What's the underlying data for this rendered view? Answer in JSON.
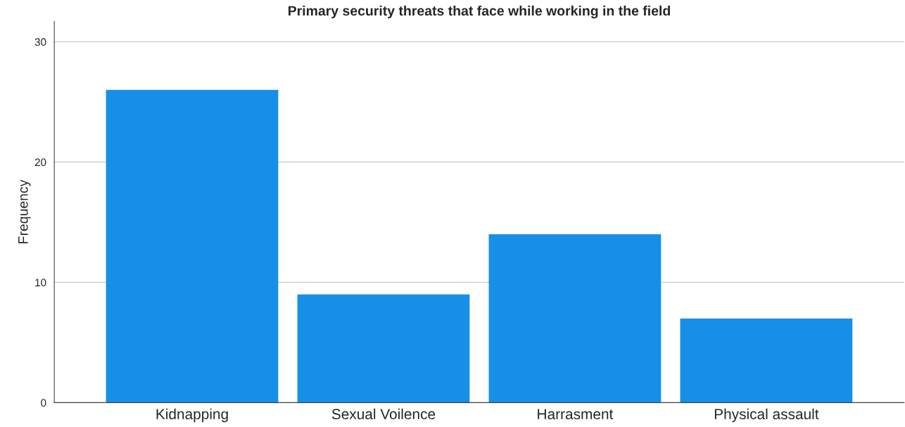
{
  "chart_data": {
    "type": "bar",
    "title": "Primary security threats that face while working in the field",
    "ylabel": "Frequency",
    "categories": [
      "Kidnapping",
      "Sexual Voilence",
      "Harrasment",
      "Physical assault"
    ],
    "values": [
      26,
      9,
      14,
      7
    ],
    "color": "#1690e6",
    "ylim": [
      0,
      31.7
    ],
    "yticks": [
      0,
      10,
      20,
      30
    ],
    "grid": "y",
    "legend": false
  }
}
